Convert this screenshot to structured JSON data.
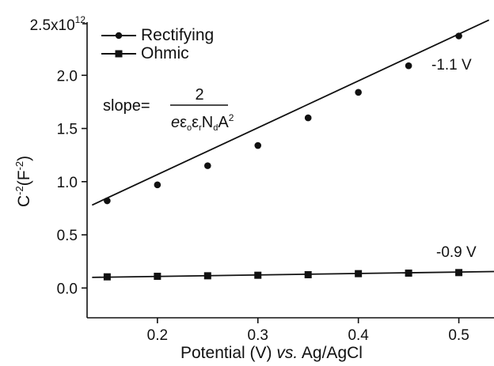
{
  "chart_data": {
    "type": "line",
    "xlabel": {
      "main": "Potential  (V) ",
      "italic": "vs.",
      "rest": " Ag/AgCl"
    },
    "ylabel": {
      "base": "C",
      "base_sup": "-2",
      "unit": "(F",
      "unit_sup": "-2",
      "close": ")"
    },
    "xlim": [
      0.13,
      0.535
    ],
    "ylim": [
      -0.28,
      2.5
    ],
    "y_exponent_label": {
      "mantissa": "2.5x10",
      "exponent": "12"
    },
    "x_ticks": [
      {
        "value": 0.2,
        "label": "0.2"
      },
      {
        "value": 0.3,
        "label": "0.3"
      },
      {
        "value": 0.4,
        "label": "0.4"
      },
      {
        "value": 0.5,
        "label": "0.5"
      }
    ],
    "y_ticks": [
      {
        "value": 0.0,
        "label": "0.0"
      },
      {
        "value": 0.5,
        "label": "0.5"
      },
      {
        "value": 1.0,
        "label": "1.0"
      },
      {
        "value": 1.5,
        "label": "1.5"
      },
      {
        "value": 2.0,
        "label": "2.0"
      }
    ],
    "series": [
      {
        "name": "Rectifying",
        "marker": "circle",
        "color": "#111111",
        "annotation": "-1.1 V",
        "x": [
          0.15,
          0.2,
          0.25,
          0.3,
          0.35,
          0.4,
          0.45,
          0.5
        ],
        "y": [
          0.82,
          0.97,
          1.15,
          1.34,
          1.6,
          1.84,
          2.09,
          2.37
        ],
        "fit_line": [
          [
            0.135,
            0.78
          ],
          [
            0.53,
            2.52
          ]
        ]
      },
      {
        "name": "Ohmic",
        "marker": "square",
        "color": "#111111",
        "annotation": "-0.9 V",
        "x": [
          0.15,
          0.2,
          0.25,
          0.3,
          0.35,
          0.4,
          0.45,
          0.5
        ],
        "y": [
          0.105,
          0.11,
          0.115,
          0.12,
          0.125,
          0.135,
          0.14,
          0.145
        ],
        "fit_line": [
          [
            0.135,
            0.1
          ],
          [
            0.535,
            0.155
          ]
        ]
      }
    ],
    "legend": {
      "placement": "top-left"
    },
    "formula": {
      "lhs": "slope=",
      "numerator": "2",
      "denominator": {
        "e": "e",
        "eps": "ε",
        "o_sub": "o",
        "eps2": "ε",
        "r_sub": "r",
        "N": "N",
        "d_sub": "d",
        "A": "A",
        "A_sup": "2"
      }
    },
    "grid": false
  }
}
